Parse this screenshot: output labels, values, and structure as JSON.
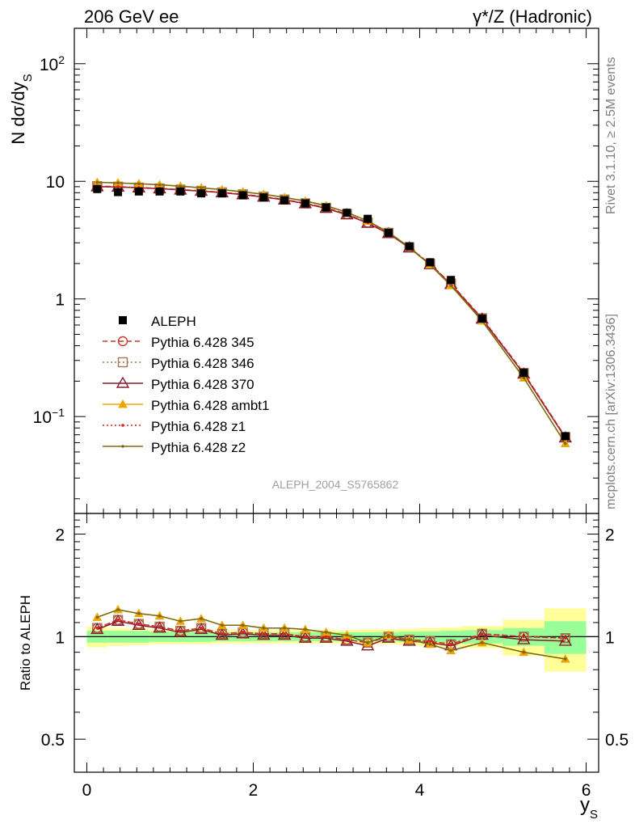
{
  "header": {
    "left": "206 GeV ee",
    "right": "γ*/Z (Hadronic)"
  },
  "side_labels": {
    "rivet": "Rivet 3.1.10, ≥ 2.5M events",
    "mcplots": "mcplots.cern.ch [arXiv:1306.3436]"
  },
  "watermark": "ALEPH_2004_S5765862",
  "chart_data": [
    {
      "type": "line",
      "panel": "main",
      "ylabel": "N dσ/dy_S",
      "xlabel": "y_S",
      "xlim": [
        -0.15,
        6.15
      ],
      "ylim": [
        0.015,
        200
      ],
      "yscale": "log",
      "yticks": [
        {
          "value": 100,
          "label": "10^2"
        },
        {
          "value": 10,
          "label": "10"
        },
        {
          "value": 1,
          "label": "1"
        },
        {
          "value": 0.1,
          "label": "10^-1"
        }
      ],
      "legend_position": "left-middle",
      "x": [
        0.125,
        0.375,
        0.625,
        0.875,
        1.125,
        1.375,
        1.625,
        1.875,
        2.125,
        2.375,
        2.625,
        2.875,
        3.125,
        3.375,
        3.625,
        3.875,
        4.125,
        4.375,
        4.75,
        5.25,
        5.75
      ],
      "data": {
        "name": "ALEPH",
        "color": "#000000",
        "values": [
          8.6,
          8.1,
          8.2,
          8.2,
          8.2,
          7.9,
          7.9,
          7.6,
          7.3,
          6.9,
          6.5,
          6.0,
          5.4,
          4.8,
          3.65,
          2.8,
          2.05,
          1.45,
          0.68,
          0.235,
          0.068
        ]
      },
      "series": [
        {
          "name": "Pythia 6.428 345",
          "color": "#c0392b",
          "style": "dashed",
          "marker": "circle",
          "values": [
            9.1,
            9.0,
            8.85,
            8.7,
            8.5,
            8.3,
            8.05,
            7.75,
            7.4,
            7.0,
            6.5,
            5.95,
            5.25,
            4.45,
            3.65,
            2.75,
            1.98,
            1.35,
            0.685,
            0.235,
            0.067
          ]
        },
        {
          "name": "Pythia 6.428 346",
          "color": "#a0784a",
          "style": "dotted",
          "marker": "square",
          "values": [
            9.1,
            9.0,
            8.85,
            8.7,
            8.5,
            8.3,
            8.05,
            7.75,
            7.4,
            7.0,
            6.5,
            5.95,
            5.25,
            4.45,
            3.65,
            2.75,
            1.98,
            1.35,
            0.685,
            0.235,
            0.067
          ]
        },
        {
          "name": "Pythia 6.428 370",
          "color": "#8b1a2b",
          "style": "solid",
          "marker": "triangle",
          "values": [
            9.0,
            8.95,
            8.8,
            8.65,
            8.45,
            8.25,
            8.0,
            7.7,
            7.35,
            6.95,
            6.45,
            5.9,
            5.2,
            4.4,
            3.6,
            2.72,
            1.96,
            1.33,
            0.675,
            0.23,
            0.066
          ]
        },
        {
          "name": "Pythia 6.428 ambt1",
          "color": "#f0a500",
          "style": "solid",
          "marker": "triangle-filled",
          "values": [
            9.8,
            9.7,
            9.55,
            9.35,
            9.1,
            8.8,
            8.5,
            8.15,
            7.75,
            7.3,
            6.8,
            6.2,
            5.45,
            4.6,
            3.7,
            2.75,
            1.95,
            1.3,
            0.65,
            0.213,
            0.059
          ]
        },
        {
          "name": "Pythia 6.428 z1",
          "color": "#e02020",
          "style": "dotted",
          "marker": "dot",
          "values": [
            9.1,
            9.0,
            8.85,
            8.7,
            8.5,
            8.3,
            8.05,
            7.75,
            7.4,
            7.0,
            6.5,
            5.95,
            5.25,
            4.45,
            3.65,
            2.75,
            1.98,
            1.35,
            0.685,
            0.235,
            0.067
          ]
        },
        {
          "name": "Pythia 6.428 z2",
          "color": "#7a6a10",
          "style": "solid",
          "marker": "dot",
          "values": [
            9.8,
            9.7,
            9.55,
            9.35,
            9.1,
            8.8,
            8.5,
            8.15,
            7.75,
            7.3,
            6.8,
            6.2,
            5.45,
            4.6,
            3.7,
            2.75,
            1.95,
            1.3,
            0.65,
            0.213,
            0.059
          ]
        }
      ]
    },
    {
      "type": "line",
      "panel": "ratio",
      "ylabel": "Ratio to ALEPH",
      "xlabel": "y_S",
      "xlim": [
        -0.15,
        6.15
      ],
      "ylim": [
        0.4,
        2.3
      ],
      "yscale": "log",
      "yticks": [
        {
          "value": 0.5,
          "label": "0.5"
        },
        {
          "value": 1,
          "label": "1"
        },
        {
          "value": 2,
          "label": "2"
        }
      ],
      "xticks": [
        {
          "value": 0,
          "label": "0"
        },
        {
          "value": 2,
          "label": "2"
        },
        {
          "value": 4,
          "label": "4"
        },
        {
          "value": 6,
          "label": "6"
        }
      ],
      "bands": [
        {
          "x0": 0.0,
          "x1": 0.25,
          "stat": 0.04,
          "total": 0.07
        },
        {
          "x0": 0.25,
          "x1": 0.5,
          "stat": 0.04,
          "total": 0.06
        },
        {
          "x0": 0.5,
          "x1": 0.75,
          "stat": 0.04,
          "total": 0.055
        },
        {
          "x0": 0.75,
          "x1": 1.0,
          "stat": 0.035,
          "total": 0.05
        },
        {
          "x0": 1.0,
          "x1": 1.25,
          "stat": 0.035,
          "total": 0.05
        },
        {
          "x0": 1.25,
          "x1": 1.5,
          "stat": 0.035,
          "total": 0.05
        },
        {
          "x0": 1.5,
          "x1": 1.75,
          "stat": 0.03,
          "total": 0.045
        },
        {
          "x0": 1.75,
          "x1": 2.0,
          "stat": 0.03,
          "total": 0.045
        },
        {
          "x0": 2.0,
          "x1": 2.25,
          "stat": 0.03,
          "total": 0.045
        },
        {
          "x0": 2.25,
          "x1": 2.5,
          "stat": 0.03,
          "total": 0.045
        },
        {
          "x0": 2.5,
          "x1": 2.75,
          "stat": 0.03,
          "total": 0.045
        },
        {
          "x0": 2.75,
          "x1": 3.0,
          "stat": 0.03,
          "total": 0.045
        },
        {
          "x0": 3.0,
          "x1": 3.25,
          "stat": 0.03,
          "total": 0.045
        },
        {
          "x0": 3.25,
          "x1": 3.5,
          "stat": 0.03,
          "total": 0.05
        },
        {
          "x0": 3.5,
          "x1": 3.75,
          "stat": 0.03,
          "total": 0.05
        },
        {
          "x0": 3.75,
          "x1": 4.0,
          "stat": 0.035,
          "total": 0.055
        },
        {
          "x0": 4.0,
          "x1": 4.25,
          "stat": 0.035,
          "total": 0.06
        },
        {
          "x0": 4.25,
          "x1": 4.5,
          "stat": 0.04,
          "total": 0.065
        },
        {
          "x0": 4.5,
          "x1": 5.0,
          "stat": 0.045,
          "total": 0.075
        },
        {
          "x0": 5.0,
          "x1": 5.5,
          "stat": 0.06,
          "total": 0.12
        },
        {
          "x0": 5.5,
          "x1": 6.0,
          "stat": 0.11,
          "total": 0.21
        }
      ],
      "reference_line": 1,
      "series": [
        {
          "name": "Pythia 6.428 345",
          "values": [
            1.06,
            1.12,
            1.09,
            1.07,
            1.04,
            1.06,
            1.02,
            1.03,
            1.02,
            1.02,
            1.0,
            1.0,
            0.98,
            0.96,
            1.0,
            0.98,
            0.97,
            0.95,
            1.02,
            1.0,
            0.99
          ]
        },
        {
          "name": "Pythia 6.428 346",
          "values": [
            1.06,
            1.12,
            1.09,
            1.07,
            1.04,
            1.06,
            1.02,
            1.03,
            1.02,
            1.02,
            1.0,
            1.0,
            0.98,
            0.96,
            1.0,
            0.98,
            0.97,
            0.95,
            1.02,
            1.0,
            0.99
          ]
        },
        {
          "name": "Pythia 6.428 370",
          "values": [
            1.05,
            1.11,
            1.08,
            1.06,
            1.03,
            1.05,
            1.01,
            1.02,
            1.01,
            1.01,
            0.99,
            0.99,
            0.97,
            0.94,
            0.99,
            0.97,
            0.96,
            0.94,
            1.01,
            0.98,
            0.97
          ]
        },
        {
          "name": "Pythia 6.428 ambt1",
          "values": [
            1.14,
            1.2,
            1.17,
            1.15,
            1.11,
            1.13,
            1.08,
            1.08,
            1.06,
            1.06,
            1.05,
            1.03,
            1.01,
            0.96,
            1.01,
            0.98,
            0.95,
            0.91,
            0.96,
            0.9,
            0.86
          ]
        },
        {
          "name": "Pythia 6.428 z1",
          "values": [
            1.06,
            1.12,
            1.09,
            1.07,
            1.04,
            1.06,
            1.02,
            1.03,
            1.02,
            1.02,
            1.0,
            1.0,
            0.98,
            0.96,
            1.0,
            0.98,
            0.97,
            0.95,
            1.02,
            1.0,
            0.99
          ]
        },
        {
          "name": "Pythia 6.428 z2",
          "values": [
            1.14,
            1.2,
            1.17,
            1.15,
            1.11,
            1.13,
            1.08,
            1.08,
            1.06,
            1.06,
            1.05,
            1.03,
            1.01,
            0.96,
            1.01,
            0.98,
            0.95,
            0.91,
            0.96,
            0.9,
            0.86
          ]
        }
      ]
    }
  ]
}
